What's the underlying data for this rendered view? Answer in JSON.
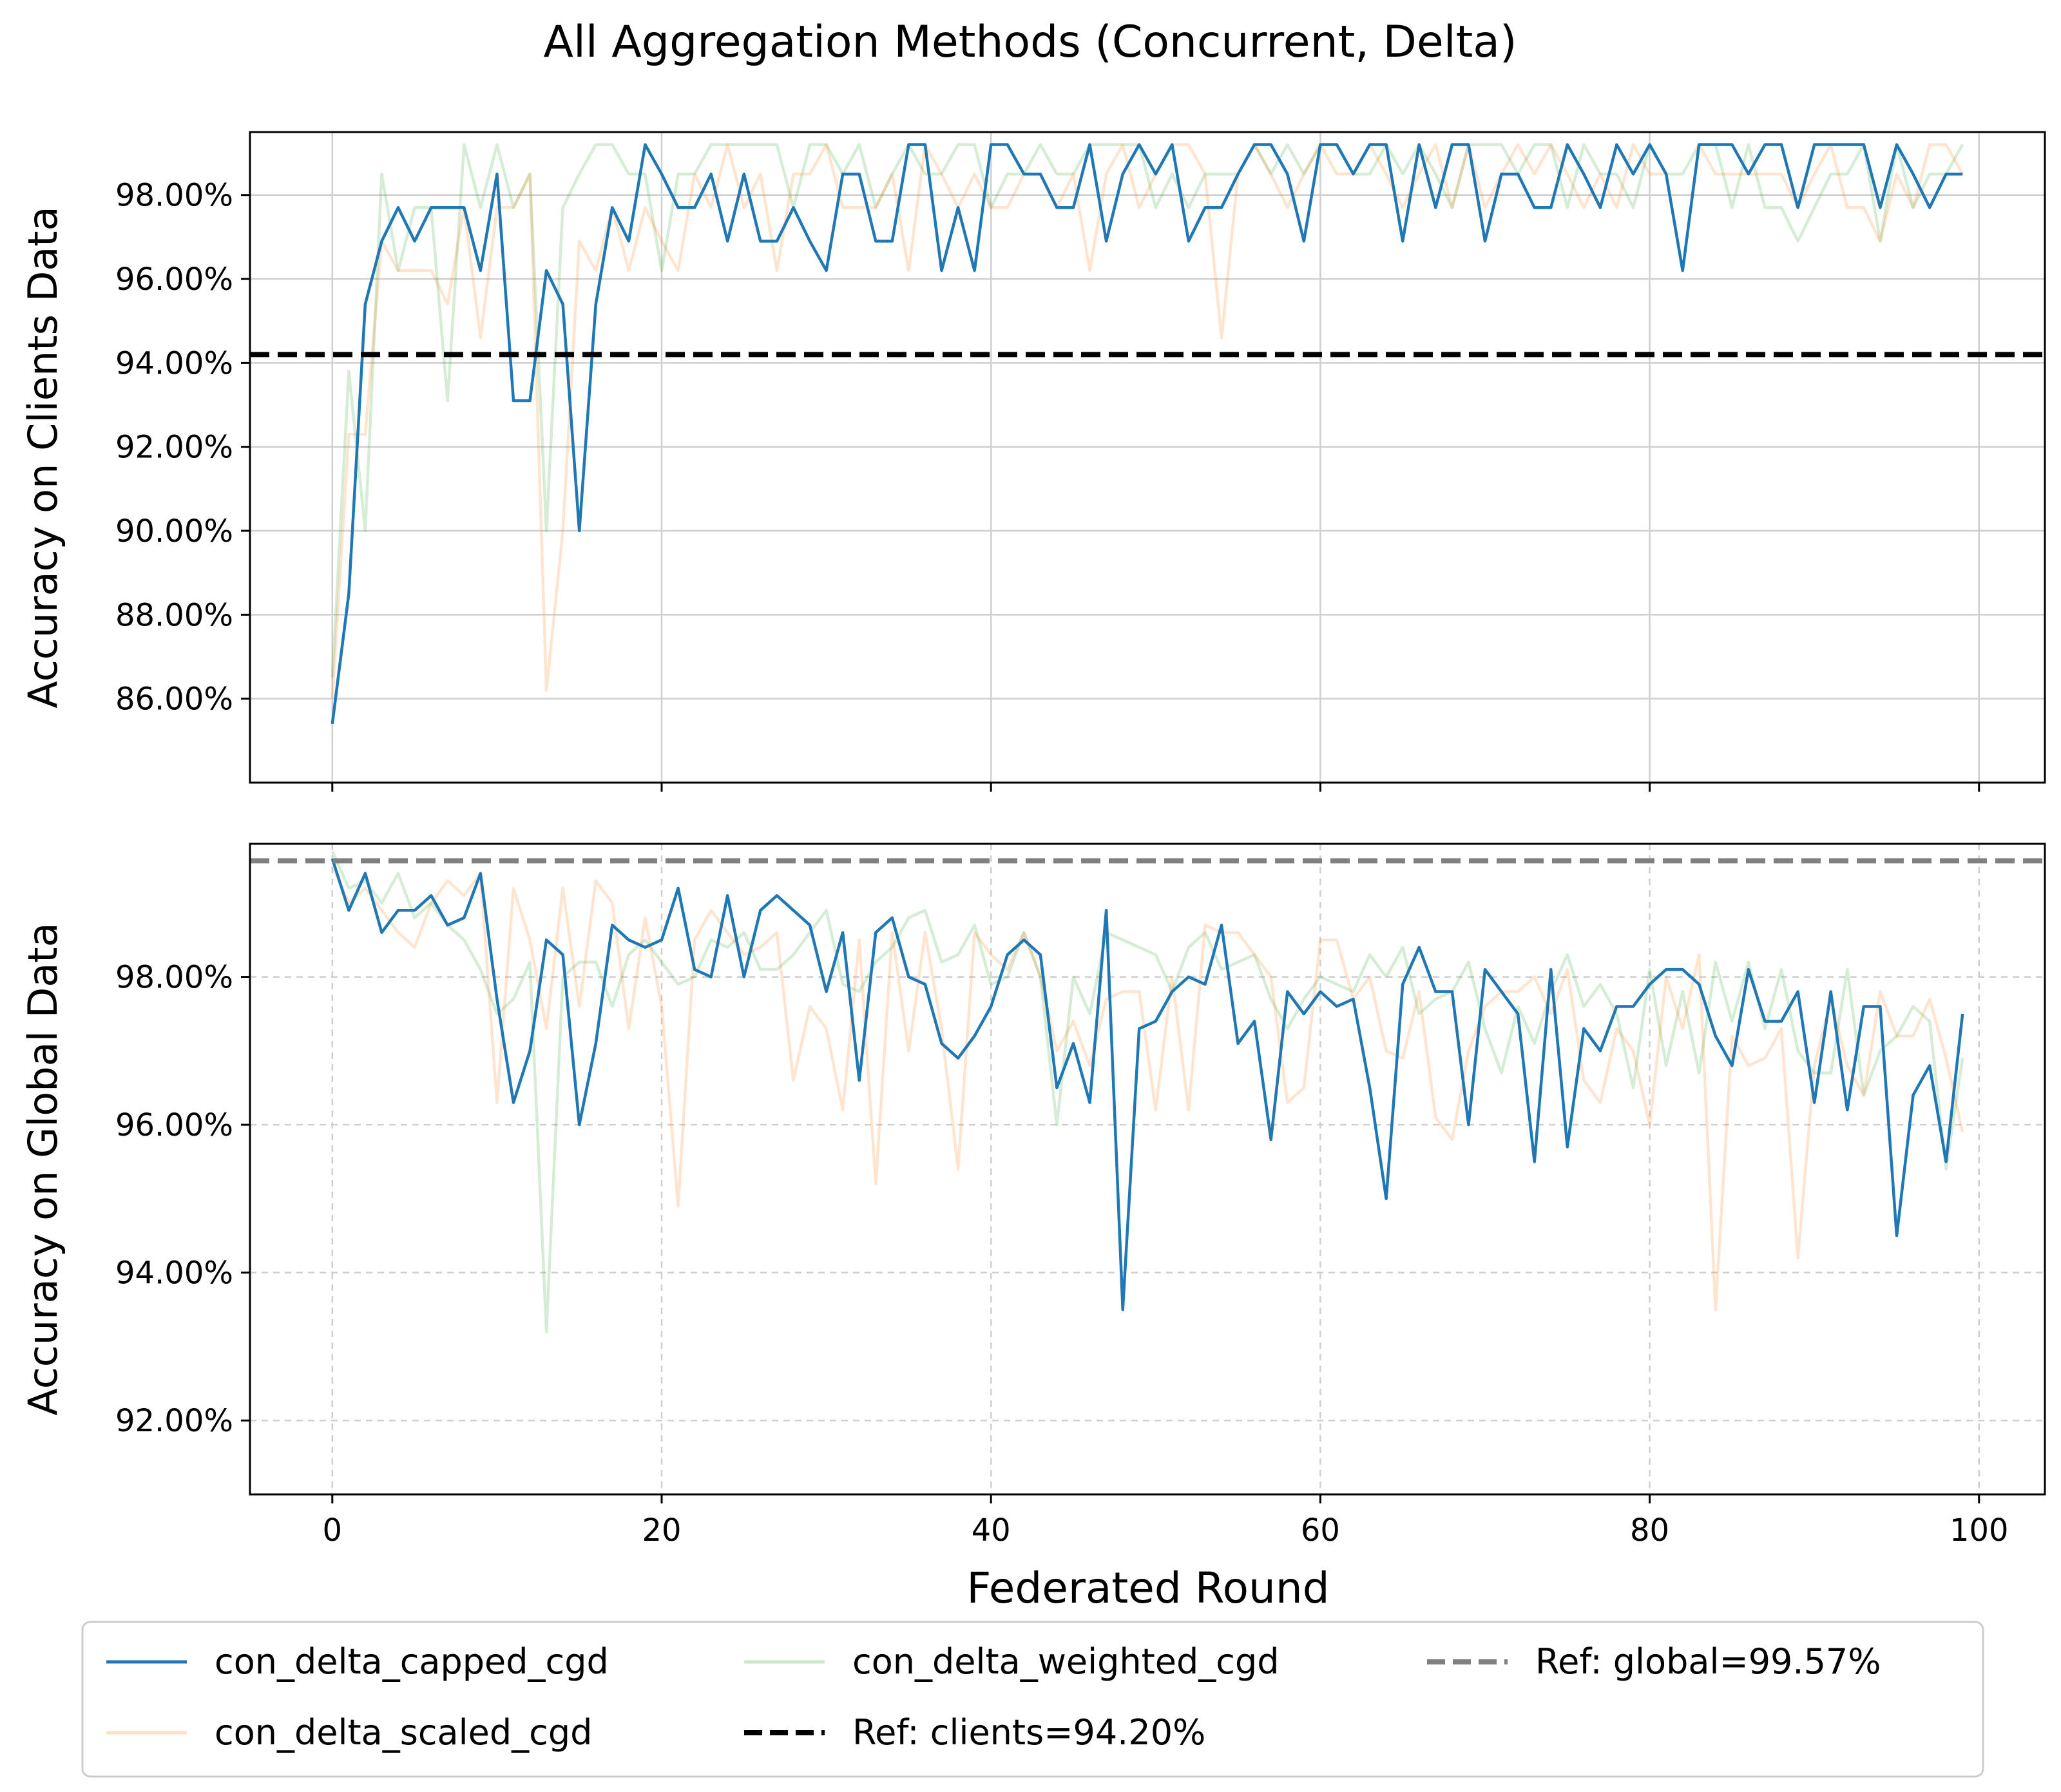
{
  "chart_data": {
    "title": "All Aggregation Methods (Concurrent, Delta)",
    "xlabel": "Federated Round",
    "x_ticks": [
      0,
      20,
      40,
      60,
      80,
      100
    ],
    "legend_placement": "bottom",
    "series_meta": [
      {
        "name": "con_delta_capped_cgd",
        "color": "#1f77b4",
        "alpha": 1.0
      },
      {
        "name": "con_delta_scaled_cgd",
        "color": "#ff7f0e",
        "alpha": 0.2
      },
      {
        "name": "con_delta_weighted_cgd",
        "color": "#2ca02c",
        "alpha": 0.2
      }
    ],
    "legend": [
      {
        "label": "con_delta_capped_cgd",
        "color": "#1f77b4",
        "style": "solid",
        "alpha": 1.0
      },
      {
        "label": "con_delta_weighted_cgd",
        "color": "#2ca02c",
        "style": "solid",
        "alpha": 0.25
      },
      {
        "label": "Ref: global=99.57%",
        "color": "#808080",
        "style": "dashed",
        "alpha": 1.0
      },
      {
        "label": "con_delta_scaled_cgd",
        "color": "#ff7f0e",
        "style": "solid",
        "alpha": 0.25
      },
      {
        "label": "Ref: clients=94.20%",
        "color": "#000000",
        "style": "dashed",
        "alpha": 1.0
      }
    ],
    "panels": [
      {
        "type": "line",
        "ylabel": "Accuracy on Clients Data",
        "xlim": [
          -5,
          104
        ],
        "ylim": [
          84.0,
          99.5
        ],
        "y_ticks": [
          86,
          88,
          90,
          92,
          94,
          96,
          98
        ],
        "y_tick_labels": [
          "86.00%",
          "88.00%",
          "90.00%",
          "92.00%",
          "94.00%",
          "96.00%",
          "98.00%"
        ],
        "grid": "solid",
        "reference": {
          "label": "Ref: clients=94.20%",
          "value": 94.2,
          "color": "#000000"
        },
        "series": [
          {
            "name": "con_delta_capped_cgd",
            "values": [
              85.4,
              88.5,
              95.4,
              96.9,
              97.7,
              96.9,
              97.7,
              97.7,
              97.7,
              96.2,
              98.5,
              93.1,
              93.1,
              96.2,
              95.4,
              90.0,
              95.4,
              97.7,
              96.9,
              99.2,
              98.5,
              97.7,
              97.7,
              98.5,
              96.9,
              98.5,
              96.9,
              96.9,
              97.7,
              96.9,
              96.2,
              98.5,
              98.5,
              96.9,
              96.9,
              99.2,
              99.2,
              96.2,
              97.7,
              96.2,
              99.2,
              99.2,
              98.5,
              98.5,
              97.7,
              97.7,
              99.2,
              96.9,
              98.5,
              99.2,
              98.5,
              99.2,
              96.9,
              97.7,
              97.7,
              98.5,
              99.2,
              99.2,
              98.5,
              96.9,
              99.2,
              99.2,
              98.5,
              99.2,
              99.2,
              96.9,
              99.2,
              97.7,
              99.2,
              99.2,
              96.9,
              98.5,
              98.5,
              97.7,
              97.7,
              99.2,
              98.5,
              97.7,
              99.2,
              98.5,
              99.2,
              98.5,
              96.2,
              99.2,
              99.2,
              99.2,
              98.5,
              99.2,
              99.2,
              97.7,
              99.2,
              99.2,
              99.2,
              99.2,
              97.7,
              99.2,
              98.5,
              97.7,
              98.5,
              98.5
            ]
          },
          {
            "name": "con_delta_scaled_cgd",
            "values": [
              86.0,
              92.3,
              92.3,
              96.9,
              96.2,
              96.2,
              96.2,
              95.4,
              97.7,
              94.6,
              97.7,
              97.7,
              98.5,
              86.2,
              90.0,
              96.9,
              96.2,
              97.7,
              96.2,
              97.7,
              96.9,
              96.2,
              98.5,
              97.7,
              99.2,
              97.7,
              98.5,
              96.2,
              98.5,
              98.5,
              99.2,
              97.7,
              97.7,
              97.7,
              98.5,
              96.2,
              99.2,
              98.5,
              97.7,
              98.5,
              97.7,
              97.7,
              98.5,
              98.5,
              97.7,
              98.5,
              96.2,
              98.5,
              99.2,
              97.7,
              98.5,
              99.2,
              99.2,
              98.5,
              94.6,
              98.5,
              99.2,
              98.5,
              97.7,
              98.5,
              99.2,
              98.5,
              98.5,
              99.2,
              98.5,
              97.7,
              98.5,
              99.2,
              97.7,
              99.2,
              97.7,
              98.5,
              99.2,
              98.5,
              99.2,
              98.5,
              97.7,
              98.5,
              97.7,
              99.2,
              98.5,
              98.5,
              96.2,
              99.2,
              98.5,
              98.5,
              98.5,
              98.5,
              98.5,
              97.7,
              98.5,
              99.2,
              97.7,
              97.7,
              96.9,
              98.5,
              97.7,
              99.2,
              99.2,
              98.5
            ]
          },
          {
            "name": "con_delta_weighted_cgd",
            "values": [
              86.5,
              93.8,
              90.0,
              98.5,
              96.2,
              97.7,
              97.7,
              93.1,
              99.2,
              97.7,
              99.2,
              97.7,
              98.5,
              90.0,
              97.7,
              98.5,
              99.2,
              99.2,
              98.5,
              98.5,
              96.2,
              98.5,
              98.5,
              99.2,
              99.2,
              99.2,
              99.2,
              99.2,
              97.7,
              99.2,
              99.2,
              98.5,
              99.2,
              97.7,
              98.5,
              99.2,
              98.5,
              98.5,
              99.2,
              99.2,
              97.7,
              98.5,
              98.5,
              99.2,
              98.5,
              98.5,
              99.2,
              99.2,
              99.2,
              99.2,
              97.7,
              98.5,
              97.7,
              98.5,
              98.5,
              98.5,
              99.2,
              98.5,
              99.2,
              98.5,
              99.2,
              99.2,
              98.5,
              98.5,
              99.2,
              98.5,
              99.2,
              98.5,
              97.7,
              99.2,
              99.2,
              99.2,
              98.5,
              99.2,
              99.2,
              97.7,
              99.2,
              98.5,
              98.5,
              97.7,
              99.2,
              98.5,
              98.5,
              99.2,
              99.2,
              97.7,
              99.2,
              97.7,
              97.7,
              96.9,
              97.7,
              98.5,
              98.5,
              99.2,
              96.9,
              99.2,
              97.7,
              98.5,
              98.5,
              99.2
            ]
          }
        ]
      },
      {
        "type": "line",
        "ylabel": "Accuracy on Global Data",
        "xlim": [
          -5,
          104
        ],
        "ylim": [
          91.0,
          99.8
        ],
        "y_ticks": [
          92,
          94,
          96,
          98
        ],
        "y_tick_labels": [
          "92.00%",
          "94.00%",
          "96.00%",
          "98.00%"
        ],
        "grid": "dashed",
        "reference": {
          "label": "Ref: global=99.57%",
          "value": 99.57,
          "color": "#808080"
        },
        "series": [
          {
            "name": "con_delta_capped_cgd",
            "values": [
              99.6,
              98.9,
              99.4,
              98.6,
              98.9,
              98.9,
              99.1,
              98.7,
              98.8,
              99.4,
              97.7,
              96.3,
              97.0,
              98.5,
              98.3,
              96.0,
              97.1,
              98.7,
              98.5,
              98.4,
              98.5,
              99.2,
              98.1,
              98.0,
              99.1,
              98.0,
              98.9,
              99.1,
              98.9,
              98.7,
              97.8,
              98.6,
              96.6,
              98.6,
              98.8,
              98.0,
              97.9,
              97.1,
              96.9,
              97.2,
              97.6,
              98.3,
              98.5,
              98.3,
              96.5,
              97.1,
              96.3,
              98.9,
              93.5,
              97.3,
              97.4,
              97.8,
              98.0,
              97.9,
              98.7,
              97.1,
              97.4,
              95.8,
              97.8,
              97.5,
              97.8,
              97.6,
              97.7,
              96.5,
              95.0,
              97.9,
              98.4,
              97.8,
              97.8,
              96.0,
              98.1,
              97.8,
              97.5,
              95.5,
              98.1,
              95.7,
              97.3,
              97.0,
              97.6,
              97.6,
              97.9,
              98.1,
              98.1,
              97.9,
              97.2,
              96.8,
              98.1,
              97.4,
              97.4,
              97.8,
              96.3,
              97.8,
              96.2,
              97.6,
              97.6,
              94.5,
              96.4,
              96.8,
              95.5,
              97.5
            ]
          },
          {
            "name": "con_delta_scaled_cgd",
            "values": [
              99.5,
              99.0,
              99.2,
              98.9,
              98.6,
              98.4,
              99.0,
              99.3,
              99.1,
              99.4,
              96.3,
              99.2,
              98.5,
              97.3,
              99.2,
              97.6,
              99.3,
              99.0,
              97.3,
              98.8,
              97.6,
              94.9,
              98.5,
              98.9,
              98.6,
              98.3,
              98.4,
              98.6,
              96.6,
              97.6,
              97.3,
              96.2,
              98.5,
              95.2,
              98.6,
              97.0,
              98.6,
              97.3,
              95.4,
              98.6,
              98.3,
              98.1,
              98.6,
              98.0,
              97.0,
              97.4,
              96.8,
              97.7,
              97.8,
              97.8,
              96.2,
              98.0,
              96.2,
              98.7,
              98.6,
              98.6,
              98.3,
              98.0,
              96.3,
              96.5,
              98.5,
              98.5,
              97.7,
              98.0,
              97.0,
              96.9,
              97.8,
              96.1,
              95.8,
              97.0,
              97.6,
              97.8,
              97.8,
              98.0,
              97.5,
              98.1,
              96.6,
              96.3,
              97.3,
              97.0,
              96.0,
              98.0,
              97.3,
              98.3,
              93.5,
              97.2,
              96.8,
              96.9,
              97.3,
              94.2,
              96.8,
              97.7,
              96.8,
              96.4,
              97.8,
              97.2,
              97.2,
              97.7,
              96.9,
              95.9
            ]
          },
          {
            "name": "con_delta_weighted_cgd",
            "values": [
              99.7,
              99.2,
              99.3,
              99.0,
              99.4,
              98.8,
              99.0,
              98.7,
              98.5,
              98.1,
              97.5,
              97.7,
              98.2,
              93.2,
              98.0,
              98.2,
              98.2,
              97.6,
              98.3,
              98.5,
              98.2,
              97.9,
              98.0,
              98.5,
              98.4,
              98.6,
              98.1,
              98.1,
              98.3,
              98.6,
              98.9,
              97.9,
              97.8,
              98.2,
              98.4,
              98.8,
              98.9,
              98.2,
              98.3,
              98.7,
              97.9,
              98.0,
              98.6,
              98.0,
              96.0,
              98.0,
              97.5,
              98.6,
              98.5,
              98.4,
              98.3,
              97.8,
              98.4,
              98.6,
              98.1,
              98.2,
              98.3,
              97.7,
              97.3,
              97.7,
              98.0,
              97.9,
              97.8,
              98.3,
              98.0,
              98.4,
              97.5,
              97.7,
              97.8,
              98.2,
              97.3,
              96.7,
              97.6,
              97.1,
              97.8,
              98.3,
              97.6,
              97.9,
              97.5,
              96.5,
              98.1,
              96.8,
              97.8,
              96.7,
              98.2,
              97.4,
              98.2,
              97.3,
              98.1,
              97.0,
              96.7,
              96.7,
              98.1,
              96.4,
              97.0,
              97.2,
              97.6,
              97.4,
              95.4,
              96.9
            ]
          }
        ]
      }
    ]
  }
}
